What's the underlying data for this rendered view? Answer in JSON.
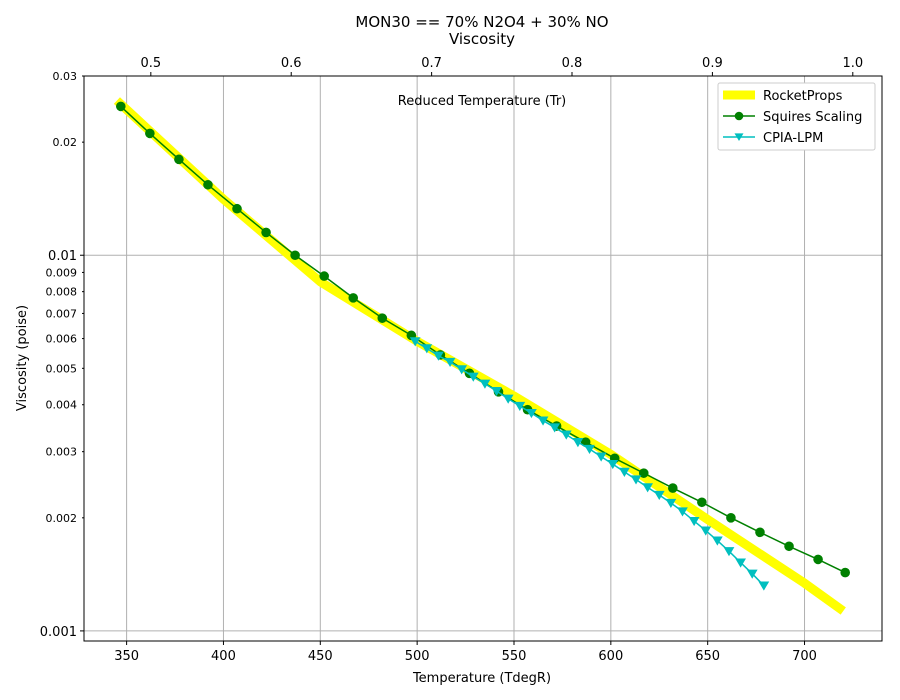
{
  "chart_data": {
    "type": "line",
    "title": "MON30 == 70% N2O4 + 30% NO",
    "subtitle": "Viscosity",
    "xlabel": "Temperature (TdegR)",
    "ylabel": "Viscosity (poise)",
    "top_xlabel": "Reduced Temperature (Tr)",
    "xlim": [
      328,
      740
    ],
    "ylim": [
      0.00094,
      0.03
    ],
    "yscale": "log",
    "top_xlim": [
      0.4524,
      1.0208
    ],
    "grid": true,
    "legend_position": "top-right",
    "x_ticks": [
      350,
      400,
      450,
      500,
      550,
      600,
      650,
      700
    ],
    "x_tick_labels": [
      "350",
      "400",
      "450",
      "500",
      "550",
      "600",
      "650",
      "700"
    ],
    "top_x_ticks": [
      0.5,
      0.6,
      0.7,
      0.8,
      0.9,
      1.0
    ],
    "top_x_tick_labels": [
      "0.5",
      "0.6",
      "0.7",
      "0.8",
      "0.9",
      "1.0"
    ],
    "y_major_ticks": [
      0.001,
      0.01
    ],
    "y_major_tick_labels": [
      "0.001",
      "0.01"
    ],
    "y_minor_ticks": [
      0.002,
      0.003,
      0.004,
      0.005,
      0.006,
      0.007,
      0.008,
      0.009,
      0.02,
      0.03
    ],
    "y_minor_tick_labels": [
      "0.002",
      "0.003",
      "0.004",
      "0.005",
      "0.006",
      "0.007",
      "0.008",
      "0.009",
      "0.02",
      "0.03"
    ],
    "series": [
      {
        "name": "RocketProps",
        "color": "#ffff00",
        "marker": "none",
        "x": [
          345,
          400,
          450,
          500,
          550,
          600,
          650,
          700,
          720
        ],
        "y": [
          0.0258,
          0.0141,
          0.0085,
          0.0059,
          0.00422,
          0.00295,
          0.00198,
          0.00134,
          0.00113
        ]
      },
      {
        "name": "Squires Scaling",
        "color": "#008000",
        "marker": "circle",
        "x": [
          347,
          362,
          377,
          392,
          407,
          422,
          437,
          452,
          467,
          482,
          497,
          512,
          527,
          542,
          557,
          572,
          587,
          602,
          617,
          632,
          647,
          662,
          677,
          692,
          707,
          721
        ],
        "y": [
          0.0249,
          0.0211,
          0.018,
          0.0154,
          0.0133,
          0.0115,
          0.01,
          0.0088,
          0.0077,
          0.0068,
          0.00612,
          0.00543,
          0.00485,
          0.00433,
          0.00388,
          0.00351,
          0.00318,
          0.00288,
          0.00263,
          0.0024,
          0.0022,
          0.002,
          0.00183,
          0.00168,
          0.00155,
          0.00143
        ]
      },
      {
        "name": "CPIA-LPM",
        "color": "#00bfbf",
        "marker": "triangle-down",
        "x": [
          499,
          505,
          511,
          517,
          523,
          529,
          535,
          541,
          547,
          553,
          559,
          565,
          571,
          577,
          583,
          589,
          595,
          601,
          607,
          613,
          619,
          625,
          631,
          637,
          643,
          649,
          655,
          661,
          667,
          673,
          679
        ],
        "y": [
          0.0059,
          0.00565,
          0.0054,
          0.0052,
          0.00497,
          0.00475,
          0.00455,
          0.00435,
          0.00415,
          0.00397,
          0.0038,
          0.00363,
          0.00348,
          0.00333,
          0.00318,
          0.00305,
          0.00291,
          0.00278,
          0.00265,
          0.00253,
          0.00241,
          0.0023,
          0.00219,
          0.00208,
          0.00196,
          0.00185,
          0.00174,
          0.00163,
          0.00152,
          0.00142,
          0.00132
        ]
      }
    ]
  }
}
